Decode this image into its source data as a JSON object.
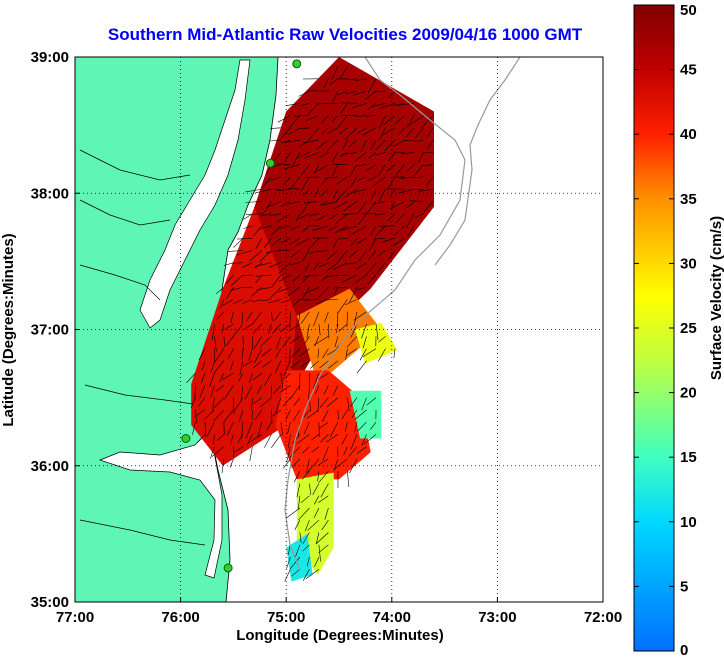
{
  "chart_data": {
    "type": "heatmap",
    "title": "Southern Mid-Atlantic Raw Velocities 2009/04/16 1000 GMT",
    "xlabel": "Longitude (Degrees:Minutes)",
    "ylabel": "Latitude (Degrees:Minutes)",
    "xlim": [
      -77,
      -72
    ],
    "ylim": [
      35,
      39
    ],
    "x_ticks": [
      {
        "value": -77,
        "label": "77:00"
      },
      {
        "value": -76,
        "label": "76:00"
      },
      {
        "value": -75,
        "label": "75:00"
      },
      {
        "value": -74,
        "label": "74:00"
      },
      {
        "value": -73,
        "label": "73:00"
      },
      {
        "value": -72,
        "label": "72:00"
      }
    ],
    "y_ticks": [
      {
        "value": 39,
        "label": "39:00"
      },
      {
        "value": 38,
        "label": "38:00"
      },
      {
        "value": 37,
        "label": "37:00"
      },
      {
        "value": 36,
        "label": "36:00"
      },
      {
        "value": 35,
        "label": "35:00"
      }
    ],
    "grid": true,
    "colorbar": {
      "label": "Surface Velocity (cm/s)",
      "min": 0,
      "max": 50,
      "placement": "right",
      "ticks": [
        "0",
        "5",
        "10",
        "15",
        "20",
        "25",
        "30",
        "35",
        "40",
        "45",
        "50"
      ]
    },
    "stations": [
      {
        "lon": -74.9,
        "lat": 38.95
      },
      {
        "lon": -75.15,
        "lat": 38.22
      },
      {
        "lon": -75.95,
        "lat": 36.2
      },
      {
        "lon": -75.55,
        "lat": 35.25
      }
    ],
    "regions": [
      {
        "value": 47,
        "polygon": [
          [
            -75.0,
            38.6
          ],
          [
            -74.5,
            39.0
          ],
          [
            -73.6,
            38.6
          ],
          [
            -73.6,
            37.9
          ],
          [
            -74.2,
            37.3
          ],
          [
            -74.6,
            37.0
          ],
          [
            -74.9,
            36.6
          ],
          [
            -75.6,
            36.4
          ],
          [
            -75.6,
            37.2
          ],
          [
            -75.3,
            37.9
          ],
          [
            -75.0,
            38.6
          ]
        ]
      },
      {
        "value": 43,
        "polygon": [
          [
            -75.9,
            36.6
          ],
          [
            -75.6,
            37.3
          ],
          [
            -75.3,
            37.9
          ],
          [
            -74.9,
            37.1
          ],
          [
            -75.0,
            36.3
          ],
          [
            -75.6,
            36.0
          ],
          [
            -75.9,
            36.3
          ],
          [
            -75.9,
            36.6
          ]
        ]
      },
      {
        "value": 36,
        "polygon": [
          [
            -74.9,
            37.1
          ],
          [
            -74.4,
            37.3
          ],
          [
            -74.1,
            37.0
          ],
          [
            -74.7,
            36.6
          ],
          [
            -74.9,
            37.1
          ]
        ]
      },
      {
        "value": 26,
        "polygon": [
          [
            -74.35,
            37.0
          ],
          [
            -74.1,
            37.05
          ],
          [
            -73.95,
            36.85
          ],
          [
            -74.25,
            36.75
          ],
          [
            -74.35,
            37.0
          ]
        ]
      },
      {
        "value": 40,
        "polygon": [
          [
            -75.0,
            36.7
          ],
          [
            -74.6,
            36.7
          ],
          [
            -74.3,
            36.5
          ],
          [
            -74.2,
            36.1
          ],
          [
            -74.5,
            35.9
          ],
          [
            -74.9,
            35.9
          ],
          [
            -75.1,
            36.3
          ],
          [
            -75.0,
            36.7
          ]
        ]
      },
      {
        "value": 16,
        "polygon": [
          [
            -74.4,
            36.55
          ],
          [
            -74.1,
            36.55
          ],
          [
            -74.1,
            36.2
          ],
          [
            -74.3,
            36.2
          ],
          [
            -74.4,
            36.55
          ]
        ]
      },
      {
        "value": 24,
        "polygon": [
          [
            -74.9,
            35.9
          ],
          [
            -74.55,
            35.95
          ],
          [
            -74.55,
            35.4
          ],
          [
            -74.7,
            35.2
          ],
          [
            -74.9,
            35.4
          ],
          [
            -74.9,
            35.9
          ]
        ]
      },
      {
        "value": 12,
        "polygon": [
          [
            -75.0,
            35.4
          ],
          [
            -74.8,
            35.5
          ],
          [
            -74.75,
            35.2
          ],
          [
            -74.95,
            35.15
          ],
          [
            -75.0,
            35.4
          ]
        ]
      }
    ]
  }
}
